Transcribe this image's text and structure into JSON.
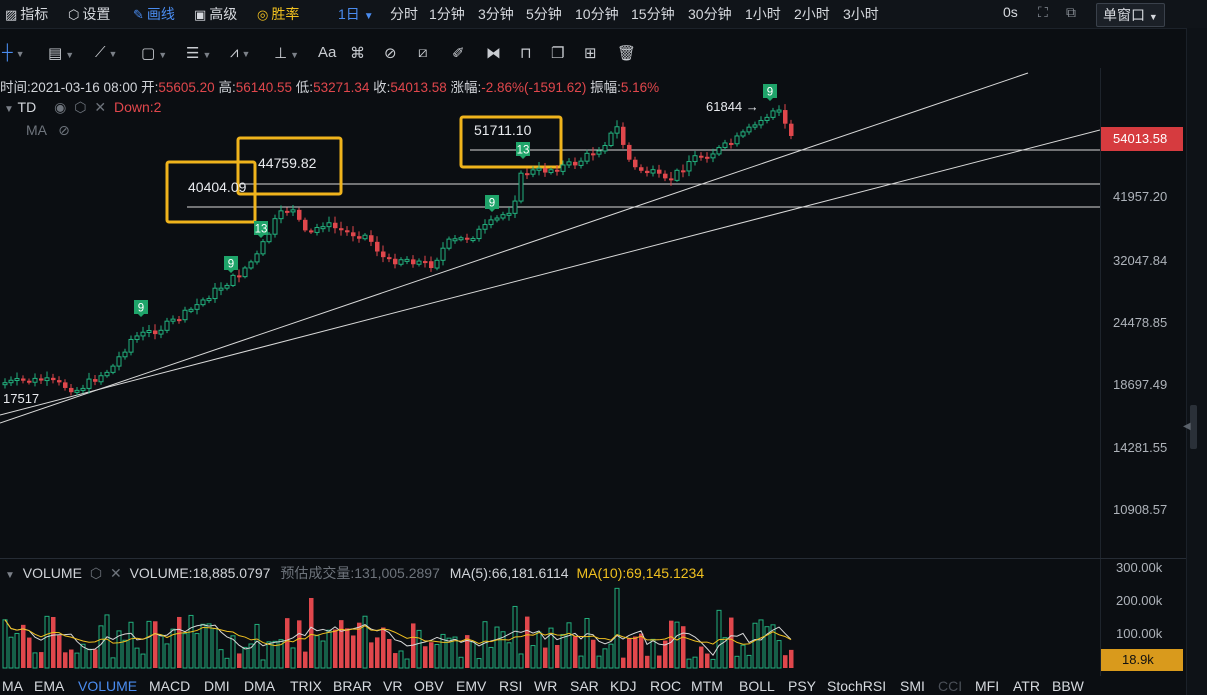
{
  "topbar": {
    "indicators": "指标",
    "settings": "设置",
    "draw": "画线",
    "advanced": "高级",
    "winrate": "胜率",
    "selected_period": "1日",
    "periods": [
      "分时",
      "1分钟",
      "3分钟",
      "5分钟",
      "10分钟",
      "15分钟",
      "30分钟",
      "1小时",
      "2小时",
      "3小时"
    ],
    "timer": "0s",
    "window_mode": "单窗口"
  },
  "info": {
    "time": "时间:2021-03-16 08:00",
    "open_label": "开:",
    "open": "55605.20",
    "high_label": "高:",
    "high": "56140.55",
    "low_label": "低:",
    "low": "53271.34",
    "close_label": "收:",
    "close": "54013.58",
    "change_label": "涨幅:",
    "change": "-2.86%(-1591.62)",
    "amp_label": "振幅:",
    "amp": "5.16%"
  },
  "indicator_rows": {
    "td": "TD",
    "td_down": "Down:2",
    "ma": "MA"
  },
  "price_axis": {
    "labels": [
      "41957.20",
      "32047.84",
      "24478.85",
      "18697.49",
      "14281.55",
      "10908.57"
    ],
    "current": "54013.58",
    "current_color": "#d63b3f"
  },
  "annotations": {
    "box1": "40404.09",
    "box2": "44759.82",
    "box3": "51711.10",
    "high_marker": "61844",
    "low_marker": "17517",
    "td_labels": [
      "9",
      "9",
      "13",
      "9",
      "13",
      "9"
    ]
  },
  "volume": {
    "title": "VOLUME",
    "value": "VOLUME:18,885.0797",
    "estimate_label": "预估成交量:",
    "estimate": "131,005.2897",
    "ma5": "MA(5):66,181.6114",
    "ma10": "MA(10):69,145.1234",
    "axis": [
      "300.00k",
      "200.00k",
      "100.00k"
    ],
    "current": "18.9k",
    "current_color": "#d99a1c"
  },
  "bottom_tabs": [
    "MA",
    "EMA",
    "VOLUME",
    "MACD",
    "DMI",
    "DMA",
    "TRIX",
    "BRAR",
    "VR",
    "OBV",
    "EMV",
    "RSI",
    "WR",
    "SAR",
    "KDJ",
    "ROC",
    "MTM",
    "BOLL",
    "PSY",
    "StochRSI",
    "SMI",
    "CCI",
    "MFI",
    "ATR",
    "BBW"
  ],
  "active_tab": "VOLUME",
  "colors": {
    "up": "#22b07d",
    "down": "#e0474c",
    "accent": "#3b82f6",
    "box": "#f0b41c"
  }
}
